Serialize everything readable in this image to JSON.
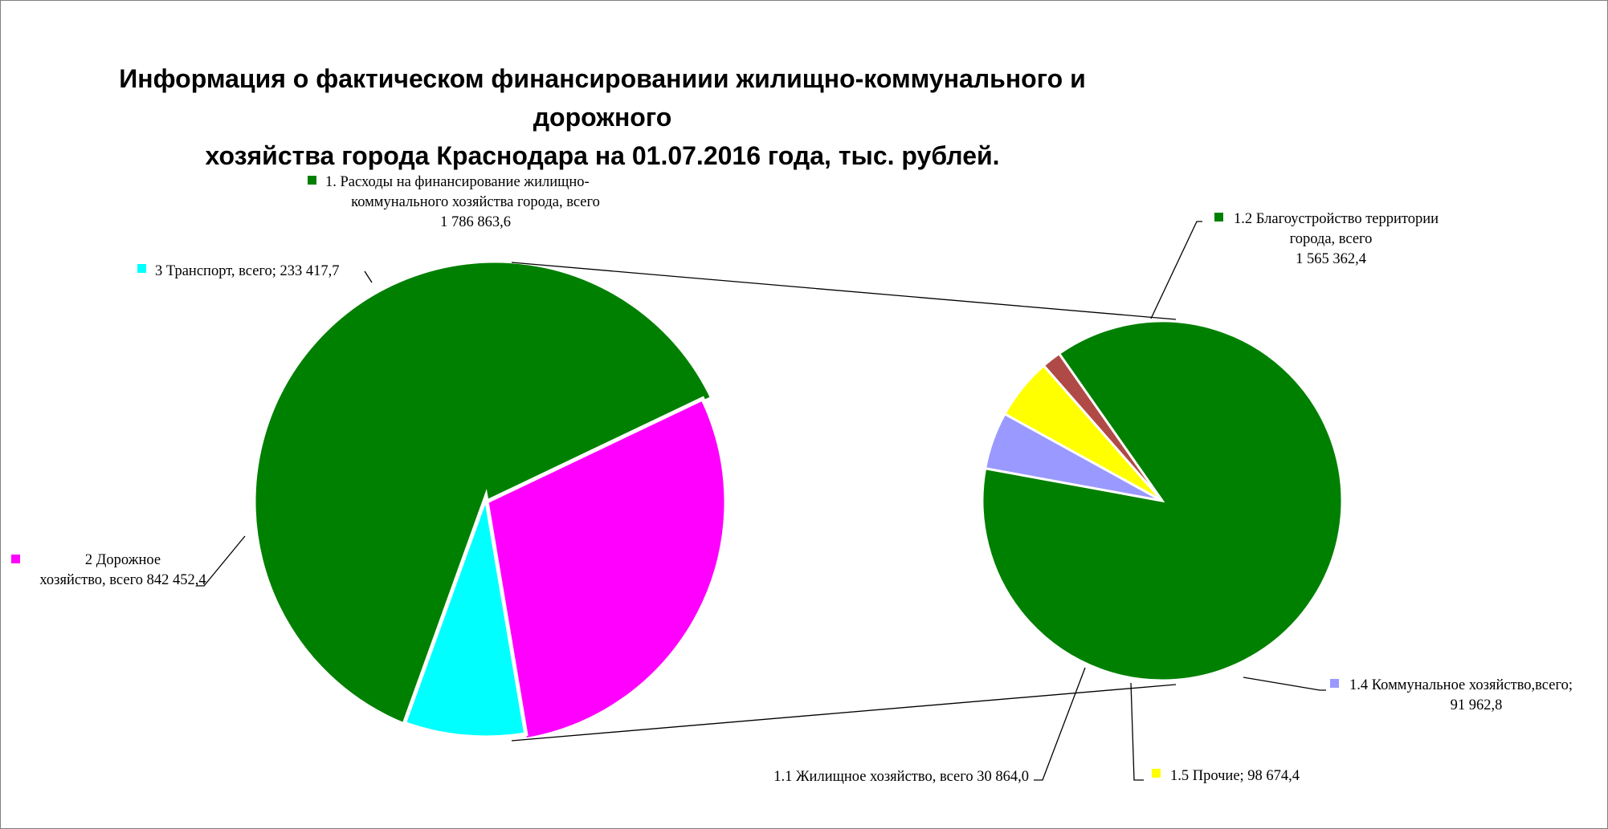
{
  "chart_data": {
    "type": "bar-of-pie",
    "title": "Информация о фактическом финансированиии жилищно-коммунального и дорожного хозяйства города Краснодара на 01.07.2016 года, тыс. рублей.",
    "title_lines": [
      "Информация о фактическом финансированиии жилищно-коммунального и дорожного",
      "хозяйства города Краснодара на 01.07.2016 года, тыс. рублей."
    ],
    "main_pie": {
      "slices": [
        {
          "id": "housing",
          "label_lines": [
            "1. Расходы на финансирование жилищно-",
            "коммунального  хозяйства города, всего",
            "1 786 863,6"
          ],
          "value": 1786863.6,
          "color": "#008000",
          "exploded_to_secondary": true
        },
        {
          "id": "road",
          "label_lines": [
            "2 Дорожное",
            "хозяйство, всего 842 452,4"
          ],
          "value": 842452.4,
          "color": "#ff00ff"
        },
        {
          "id": "transport",
          "label_lines": [
            "3 Транспорт, всего; 233 417,7"
          ],
          "value": 233417.7,
          "color": "#00ffff"
        }
      ]
    },
    "secondary_pie": {
      "parent": "housing",
      "slices": [
        {
          "id": "improvement",
          "label_lines": [
            "1.2 Благоустройство территории",
            "города, всего",
            "1 565 362,4"
          ],
          "value": 1565362.4,
          "color": "#008000"
        },
        {
          "id": "communal",
          "label_lines": [
            "1.4 Коммунальное хозяйство,всего;",
            "91 962,8"
          ],
          "value": 91962.8,
          "color": "#9999ff"
        },
        {
          "id": "other",
          "label_lines": [
            "1.5 Прочие; 98 674,4"
          ],
          "value": 98674.4,
          "color": "#ffff00"
        },
        {
          "id": "dwelling",
          "label_lines": [
            "1.1 Жилищное хозяйство, всего 30 864,0"
          ],
          "value": 30864.0,
          "color": "#b04a46"
        }
      ]
    },
    "legend": "none",
    "data_labels": "outside-with-leader-lines"
  }
}
